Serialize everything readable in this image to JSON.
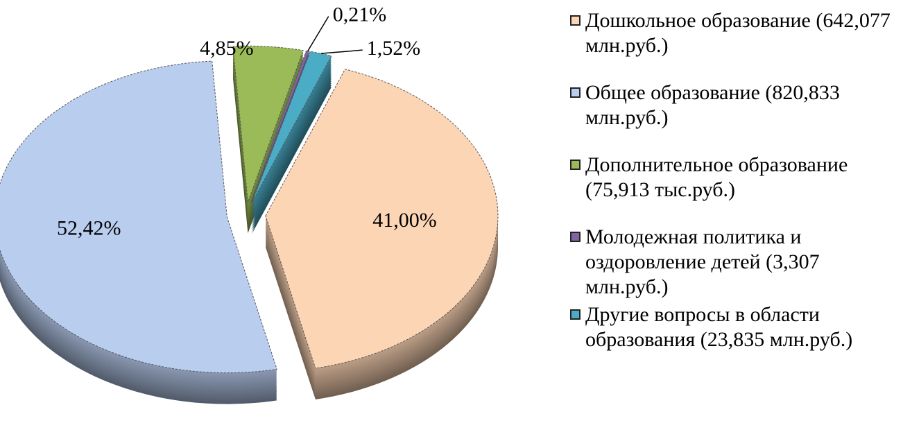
{
  "chart_data": {
    "type": "pie",
    "categories": [
      "Дошкольное образование (642,077 млн.руб.)",
      "Общее образование (820,833 млн.руб.)",
      "Дополнительное образование (75,913 тыс.руб.)",
      "Молодежная политика и оздоровление детей (3,307 млн.руб.)",
      "Другие вопросы в области образования (23,835 млн.руб.)"
    ],
    "values": [
      41.0,
      52.42,
      4.85,
      0.21,
      1.52
    ],
    "value_labels": [
      "41,00%",
      "52,42%",
      "4,85%",
      "0,21%",
      "1,52%"
    ],
    "colors": [
      "#fcd5b5",
      "#b9cdef",
      "#9bbb59",
      "#8064a2",
      "#4bacc6"
    ],
    "legend": "right"
  }
}
